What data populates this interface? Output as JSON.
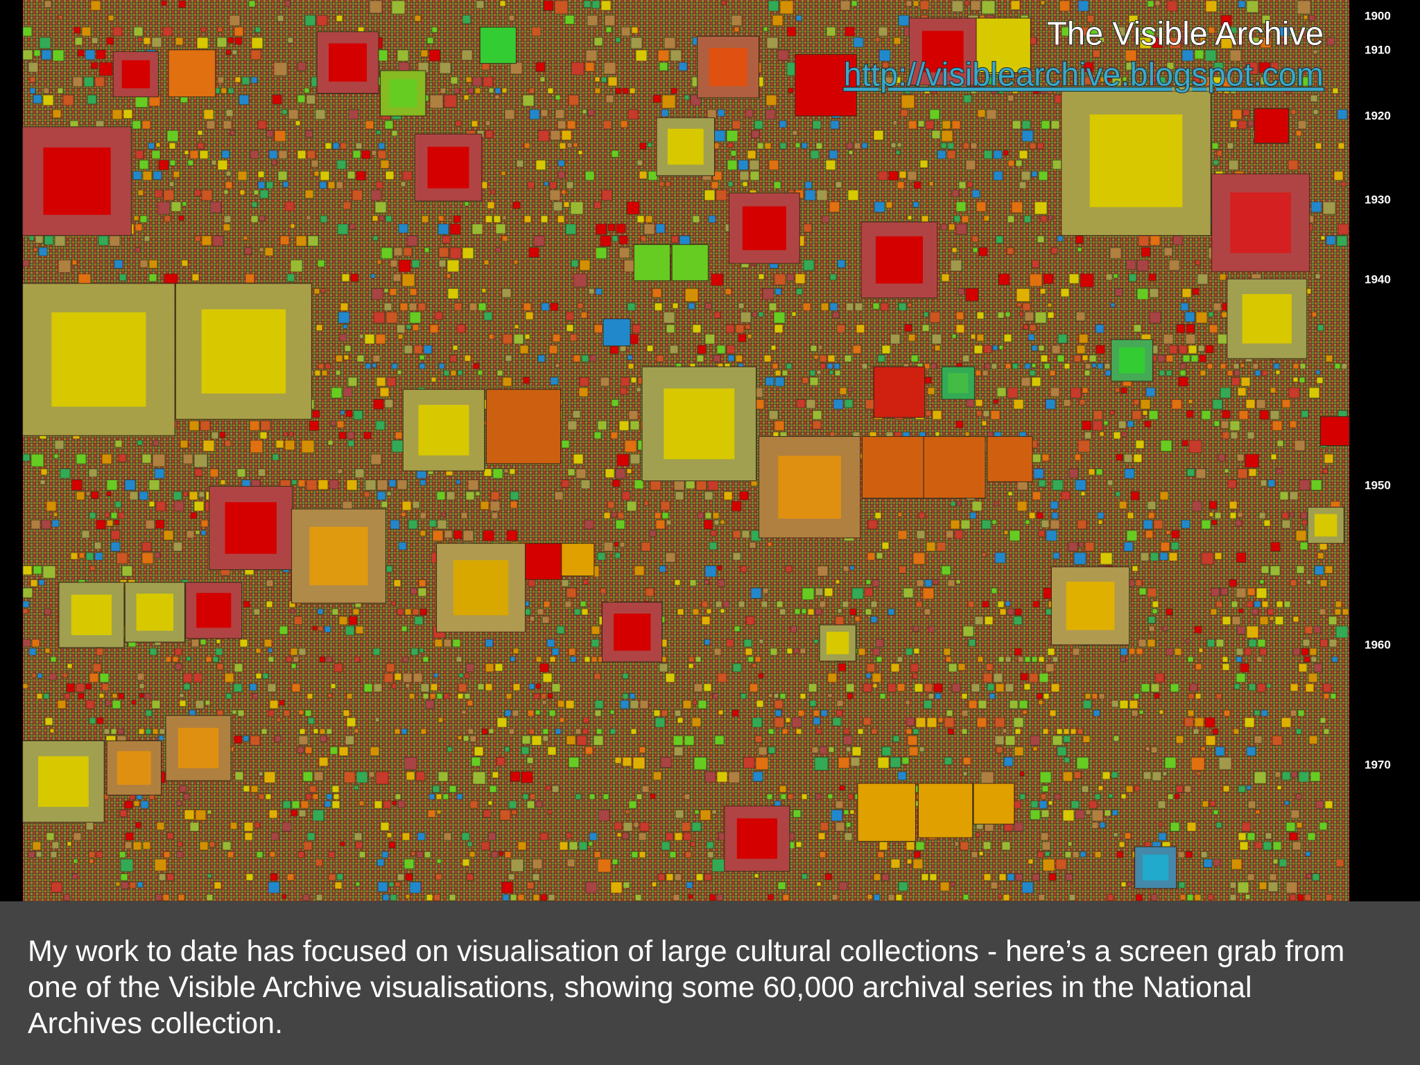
{
  "slide": {
    "visualization": {
      "title": "The Visible Archive",
      "url": "http://visiblearchive.blogspot.com",
      "year_labels": [
        "1900",
        "1910",
        "1920",
        "1930",
        "1940",
        "1950",
        "1960",
        "1970"
      ]
    },
    "caption": [
      "My work to date has focused on visualisation of large cultural collections - here’s a screen grab from",
      "one of the Visible Archive visualisations, showing some 60,000 archival series in the National",
      "Archives collection."
    ]
  }
}
